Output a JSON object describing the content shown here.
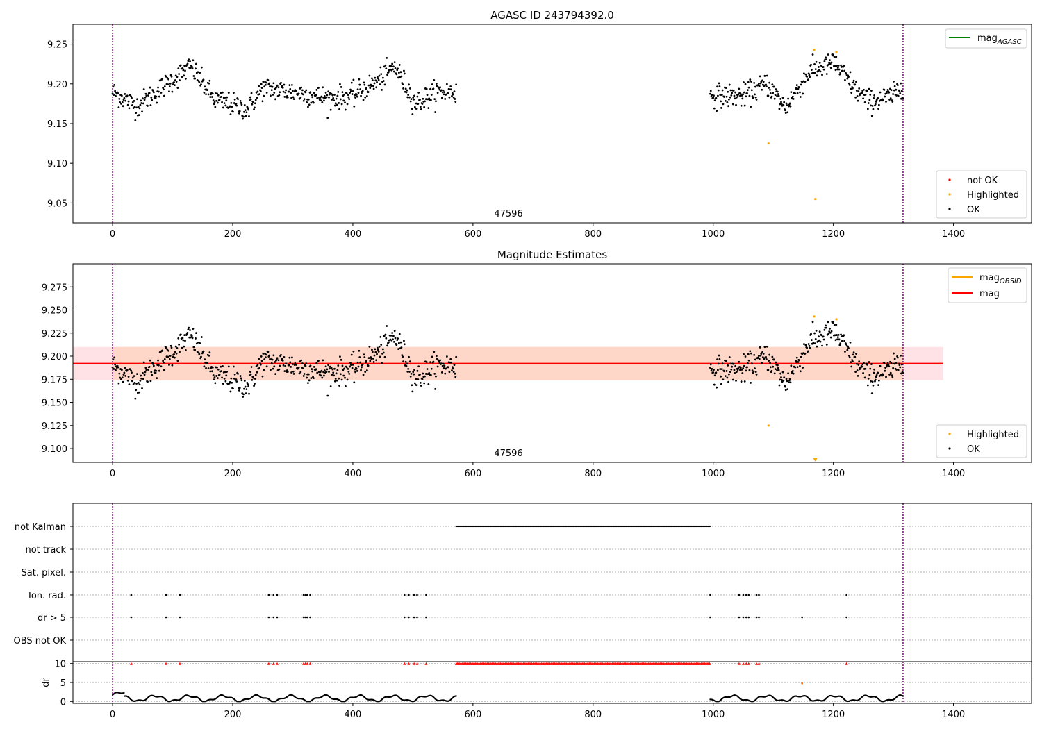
{
  "colors": {
    "ok": "#000000",
    "highlighted": "#ffa500",
    "not_ok": "#ff0000",
    "mag_agasc_line": "#008000",
    "mag_line": "#ff0000",
    "mag_band": "#ffd7c8",
    "mag_band_outer": "#ffe2e6",
    "vline": "#800080",
    "grid": "#b0b0b0"
  },
  "chart_data": [
    {
      "type": "scatter",
      "title": "AGASC ID 243794392.0",
      "xlabel": "",
      "ylabel": "",
      "xlim": [
        -66,
        1530
      ],
      "ylim": [
        9.025,
        9.275
      ],
      "xticks": [
        "0",
        "200",
        "400",
        "600",
        "800",
        "1000",
        "1200",
        "1400"
      ],
      "yticks": [
        "9.05",
        "9.10",
        "9.15",
        "9.20",
        "9.25"
      ],
      "obs_label": "47596",
      "obs_boundaries": [
        0,
        1316
      ],
      "legend_lines": [
        {
          "name": "mag",
          "sub": "AGASC",
          "color": "#008000"
        }
      ],
      "legend_points": [
        {
          "name": "not OK",
          "color": "#ff0000"
        },
        {
          "name": "Highlighted",
          "color": "#ffa500"
        },
        {
          "name": "OK",
          "color": "#000000"
        }
      ],
      "series": [
        {
          "name": "OK",
          "segments": [
            {
              "x0": 0,
              "x1": 572,
              "n": 560,
              "mean": 9.19,
              "amp": 0.022,
              "noise": 0.012,
              "knots": [
                [
                  0,
                  9.19
                ],
                [
                  40,
                  9.172
                ],
                [
                  100,
                  9.205
                ],
                [
                  130,
                  9.222
                ],
                [
                  170,
                  9.18
                ],
                [
                  225,
                  9.168
                ],
                [
                  250,
                  9.195
                ],
                [
                  300,
                  9.19
                ],
                [
                  360,
                  9.182
                ],
                [
                  400,
                  9.185
                ],
                [
                  445,
                  9.205
                ],
                [
                  470,
                  9.222
                ],
                [
                  505,
                  9.175
                ],
                [
                  540,
                  9.19
                ],
                [
                  572,
                  9.19
                ]
              ]
            },
            {
              "x0": 995,
              "x1": 1316,
              "n": 330,
              "mean": 9.19,
              "amp": 0.02,
              "noise": 0.012,
              "knots": [
                [
                  995,
                  9.185
                ],
                [
                  1050,
                  9.185
                ],
                [
                  1090,
                  9.2
                ],
                [
                  1120,
                  9.17
                ],
                [
                  1160,
                  9.215
                ],
                [
                  1200,
                  9.228
                ],
                [
                  1240,
                  9.19
                ],
                [
                  1260,
                  9.178
                ],
                [
                  1300,
                  9.185
                ],
                [
                  1316,
                  9.2
                ]
              ]
            }
          ]
        },
        {
          "name": "Highlighted",
          "points": [
            [
              1168,
              9.243
            ],
            [
              1205,
              9.24
            ],
            [
              1092,
              9.125
            ],
            [
              1170,
              9.055
            ]
          ]
        }
      ]
    },
    {
      "type": "scatter",
      "title": "Magnitude Estimates",
      "xlabel": "",
      "ylabel": "",
      "xlim": [
        -66,
        1530
      ],
      "ylim": [
        9.085,
        9.3
      ],
      "xticks": [
        "0",
        "200",
        "400",
        "600",
        "800",
        "1000",
        "1200",
        "1400"
      ],
      "yticks": [
        "9.100",
        "9.125",
        "9.150",
        "9.175",
        "9.200",
        "9.225",
        "9.250",
        "9.275"
      ],
      "obs_label": "47596",
      "obs_boundaries": [
        0,
        1316
      ],
      "mag": 9.192,
      "mag_band": [
        9.174,
        9.21
      ],
      "mag_band_x": [
        -66,
        1383
      ],
      "mag_obsid_x": [
        0,
        1316
      ],
      "legend_lines": [
        {
          "name": "mag",
          "sub": "OBSID",
          "color": "#ffa500"
        },
        {
          "name": "mag",
          "sub": "",
          "color": "#ff0000"
        }
      ],
      "legend_points": [
        {
          "name": "Highlighted",
          "color": "#ffa500"
        },
        {
          "name": "OK",
          "color": "#000000"
        }
      ],
      "series": [
        {
          "name": "Highlighted",
          "points": [
            [
              1168,
              9.243
            ],
            [
              1205,
              9.24
            ],
            [
              1092,
              9.125
            ]
          ]
        }
      ]
    },
    {
      "type": "scatter",
      "title": "",
      "xlim": [
        -66,
        1530
      ],
      "xticks": [
        "0",
        "200",
        "400",
        "600",
        "800",
        "1000",
        "1200",
        "1400"
      ],
      "flag_rows": [
        "not Kalman",
        "not track",
        "Sat. pixel.",
        "Ion. rad.",
        "dr > 5",
        "OBS not OK"
      ],
      "obs_boundaries": [
        0,
        1316
      ],
      "flags": {
        "not Kalman": {
          "ranges": [
            [
              572,
              995
            ]
          ]
        },
        "Ion. rad.": {
          "points": [
            31,
            89,
            112,
            260,
            268,
            274,
            318,
            321,
            324,
            329,
            486,
            493,
            502,
            507,
            522,
            995,
            1043,
            1050,
            1055,
            1059,
            1072,
            1076,
            1222
          ]
        },
        "dr > 5": {
          "points": [
            31,
            89,
            112,
            260,
            268,
            274,
            318,
            321,
            324,
            329,
            486,
            493,
            502,
            507,
            522,
            995,
            1043,
            1050,
            1055,
            1059,
            1072,
            1076,
            1148,
            1222
          ]
        }
      },
      "dr_panel": {
        "ylabel": "dr",
        "yticks": [
          "0",
          "5",
          "10"
        ],
        "ylim": [
          -0.5,
          10.5
        ],
        "red_at_10": [
          31,
          89,
          112,
          260,
          268,
          274,
          318,
          321,
          324,
          329,
          486,
          493,
          502,
          507,
          522,
          1043,
          1050,
          1055,
          1059,
          1072,
          1076,
          1222
        ],
        "red_range_at_10": [
          572,
          995
        ],
        "orange_points": [
          [
            1148,
            4.8
          ]
        ],
        "segments": [
          [
            0,
            572
          ],
          [
            995,
            1316
          ]
        ]
      }
    }
  ]
}
